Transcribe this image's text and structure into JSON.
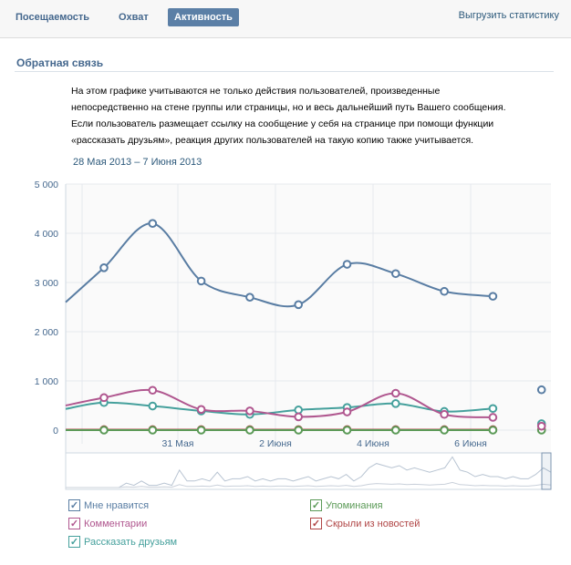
{
  "tabs": [
    {
      "label": "Посещаемость"
    },
    {
      "label": "Охват"
    },
    {
      "label": "Активность"
    }
  ],
  "export_link": "Выгрузить статистику",
  "section_title": "Обратная связь",
  "description": [
    "На этом графике учитываются не только действия пользователей, произведенные",
    "непосредственно на стене группы или страницы, но и весь дальнейший путь Вашего сообщения.",
    "Если пользователь размещает ссылку на сообщение у себя на странице при помощи функции",
    "«рассказать друзьям», реакция других пользователей на такую копию также учитывается."
  ],
  "period": "28 Мая 2013 – 7 Июня 2013",
  "chart_data": {
    "type": "line",
    "ylim": [
      0,
      5000
    ],
    "yticks": [
      "0",
      "1 000",
      "2 000",
      "3 000",
      "4 000",
      "5 000"
    ],
    "xticks": [
      "31 Мая",
      "2 Июня",
      "4 Июня",
      "6 Июня"
    ],
    "grid": true,
    "series": [
      {
        "name": "Мне нравится",
        "color": "#597da3",
        "values": [
          2600,
          3300,
          4200,
          3030,
          2700,
          2550,
          3370,
          3180,
          2820,
          2720,
          820
        ]
      },
      {
        "name": "Комментарии",
        "color": "#b0578f",
        "values": [
          500,
          660,
          810,
          420,
          390,
          270,
          370,
          750,
          320,
          260,
          80
        ]
      },
      {
        "name": "Рассказать друзьям",
        "color": "#45a09c",
        "values": [
          430,
          560,
          490,
          390,
          320,
          410,
          460,
          540,
          380,
          440,
          130
        ]
      },
      {
        "name": "Упоминания",
        "color": "#5b9a57",
        "values": [
          0,
          0,
          0,
          0,
          0,
          0,
          0,
          0,
          0,
          0,
          0
        ]
      },
      {
        "name": "Скрыли из новостей",
        "color": "#b04545",
        "values": [
          10,
          10,
          10,
          10,
          10,
          10,
          10,
          10,
          10,
          10,
          10
        ]
      }
    ],
    "navigator": [
      0,
      0,
      0,
      0,
      0,
      0,
      0,
      0,
      2,
      1,
      3,
      1,
      1,
      2,
      1,
      8,
      3,
      3,
      4,
      3,
      7,
      3,
      4,
      4,
      5,
      3,
      4,
      3,
      4,
      4,
      3,
      4,
      5,
      3,
      4,
      5,
      4,
      6,
      3,
      5,
      9,
      11,
      10,
      9,
      10,
      8,
      9,
      8,
      7,
      8,
      9,
      14,
      8,
      7,
      5,
      6,
      5,
      5,
      4,
      5,
      4,
      4,
      6,
      9,
      7
    ]
  },
  "legend": [
    {
      "label": "Мне нравится",
      "color": "#597da3",
      "checked": true
    },
    {
      "label": "Упоминания",
      "color": "#5b9a57",
      "checked": true
    },
    {
      "label": "Комментарии",
      "color": "#b0578f",
      "checked": true
    },
    {
      "label": "Скрыли из новостей",
      "color": "#b04545",
      "checked": true
    },
    {
      "label": "Рассказать друзьям",
      "color": "#45a09c",
      "checked": true
    }
  ]
}
